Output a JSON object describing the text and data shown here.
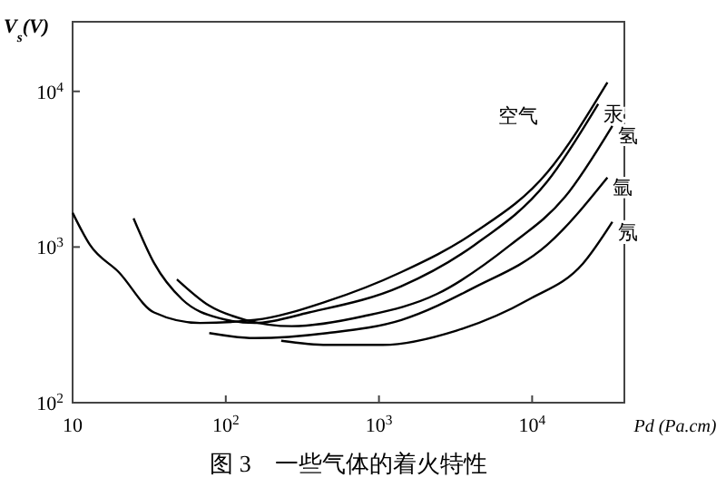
{
  "chart_data": {
    "type": "line",
    "title": "图 3　一些气体的着火特性",
    "xlabel": "Pd (Pa.cm)",
    "ylabel": "V$_{s}$(V)",
    "log": "xy",
    "xlim": [
      10,
      40000
    ],
    "ylim": [
      100,
      28000
    ],
    "xticks": [
      10,
      {
        "value": 100,
        "label": "10$^{2}$"
      },
      {
        "value": 1000,
        "label": "10$^{3}$"
      },
      {
        "value": 10000,
        "label": "10$^{4}$"
      }
    ],
    "yticks": [
      {
        "value": 100,
        "label": "10$^{2}$"
      },
      {
        "value": 1000,
        "label": "10$^{3}$"
      },
      {
        "value": 10000,
        "label": "10$^{4}$"
      }
    ],
    "grid": false,
    "marker": "none",
    "line_style": "solid",
    "series": [
      {
        "name": "空气",
        "color": "#000000",
        "x": [
          10,
          13,
          20,
          34,
          68,
          155,
          464,
          1400,
          4200,
          12500,
          31000
        ],
        "values": [
          1660,
          1030,
          690,
          380,
          325,
          340,
          450,
          690,
          1240,
          3000,
          11400
        ]
      },
      {
        "name": "汞",
        "color": "#000000",
        "x": [
          25,
          34,
          52,
          90,
          155,
          350,
          1400,
          4200,
          12500,
          27000
        ],
        "values": [
          1530,
          790,
          460,
          350,
          325,
          380,
          560,
          1030,
          2620,
          8300
        ]
      },
      {
        "name": "氢",
        "color": "#000000",
        "x": [
          48,
          78,
          135,
          270,
          800,
          2400,
          7200,
          16400,
          33400
        ],
        "values": [
          620,
          420,
          340,
          310,
          360,
          500,
          1030,
          2100,
          6000
        ]
      },
      {
        "name": "氩",
        "color": "#000000",
        "x": [
          78,
          155,
          460,
          1400,
          4200,
          12500,
          31000
        ],
        "values": [
          280,
          260,
          280,
          340,
          550,
          1030,
          2800
        ]
      },
      {
        "name": "氖",
        "color": "#000000",
        "x": [
          230,
          460,
          1060,
          3200,
          9500,
          21500,
          33400
        ],
        "values": [
          250,
          235,
          235,
          290,
          460,
          785,
          1450
        ]
      }
    ]
  }
}
